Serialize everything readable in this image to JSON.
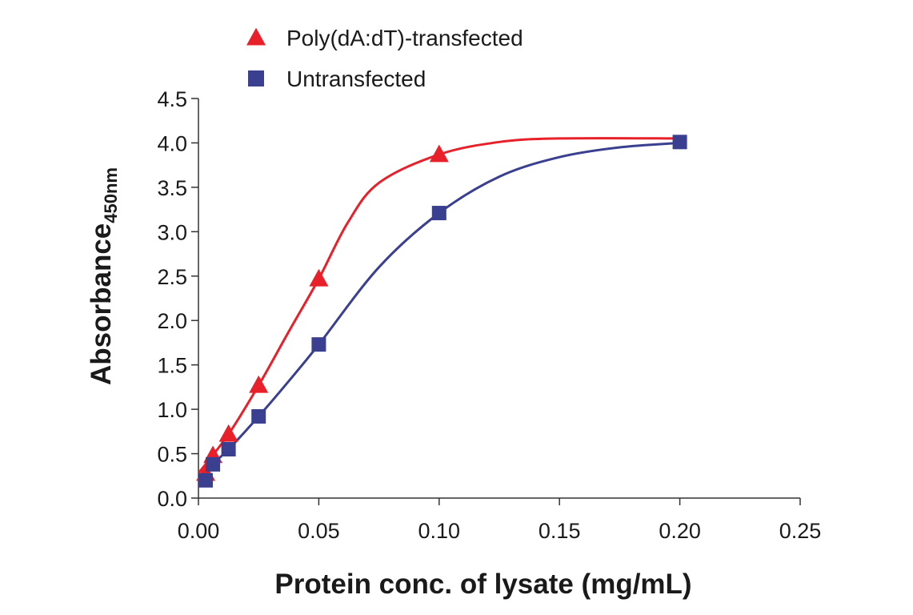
{
  "chart_data": {
    "type": "line",
    "xlabel": "Protein conc. of lysate (mg/mL)",
    "ylabel": "Absorbance",
    "ylabel_subscript": "450nm",
    "xlim": [
      0,
      0.25
    ],
    "ylim": [
      0,
      4.5
    ],
    "x_ticks": [
      "0.00",
      "0.05",
      "0.10",
      "0.15",
      "0.20",
      "0.25"
    ],
    "y_ticks": [
      "0.0",
      "0.5",
      "1.0",
      "1.5",
      "2.0",
      "2.5",
      "3.0",
      "3.5",
      "4.0",
      "4.5"
    ],
    "grid": false,
    "legend_position": "top-left",
    "series": [
      {
        "name": "Poly(dA:dT)-transfected",
        "marker": "triangle",
        "color": "#e8202a",
        "points": [
          [
            0.003,
            0.28
          ],
          [
            0.006,
            0.48
          ],
          [
            0.0125,
            0.72
          ],
          [
            0.025,
            1.27
          ],
          [
            0.05,
            2.47
          ],
          [
            0.1,
            3.87
          ]
        ],
        "curve": [
          [
            0.0,
            0.28
          ],
          [
            0.0125,
            0.72
          ],
          [
            0.025,
            1.27
          ],
          [
            0.037,
            1.85
          ],
          [
            0.05,
            2.47
          ],
          [
            0.062,
            3.1
          ],
          [
            0.075,
            3.55
          ],
          [
            0.1,
            3.87
          ],
          [
            0.125,
            4.01
          ],
          [
            0.15,
            4.05
          ],
          [
            0.2,
            4.05
          ]
        ]
      },
      {
        "name": "Untransfected",
        "marker": "square",
        "color": "#3a3f8f",
        "points": [
          [
            0.003,
            0.2
          ],
          [
            0.006,
            0.38
          ],
          [
            0.0125,
            0.55
          ],
          [
            0.025,
            0.92
          ],
          [
            0.05,
            1.73
          ],
          [
            0.1,
            3.21
          ],
          [
            0.2,
            4.01
          ]
        ],
        "curve": [
          [
            0.0,
            0.24
          ],
          [
            0.0125,
            0.55
          ],
          [
            0.025,
            0.92
          ],
          [
            0.037,
            1.3
          ],
          [
            0.05,
            1.73
          ],
          [
            0.075,
            2.6
          ],
          [
            0.1,
            3.21
          ],
          [
            0.125,
            3.62
          ],
          [
            0.15,
            3.84
          ],
          [
            0.175,
            3.95
          ],
          [
            0.2,
            4.0
          ]
        ]
      }
    ]
  }
}
